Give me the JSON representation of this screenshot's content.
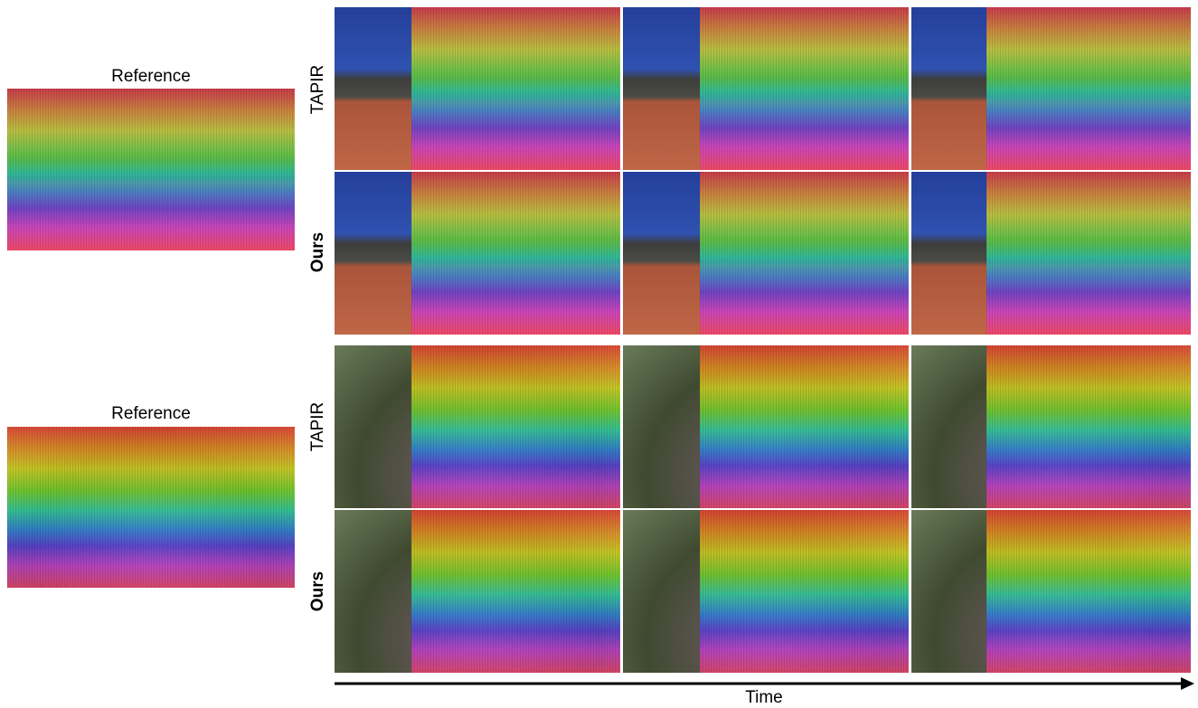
{
  "sections": [
    {
      "reference_label": "Reference",
      "rows": [
        {
          "label": "TAPIR"
        },
        {
          "label": "Ours"
        }
      ]
    },
    {
      "reference_label": "Reference",
      "rows": [
        {
          "label": "TAPIR"
        },
        {
          "label": "Ours"
        }
      ]
    }
  ],
  "axis_label": "Time"
}
